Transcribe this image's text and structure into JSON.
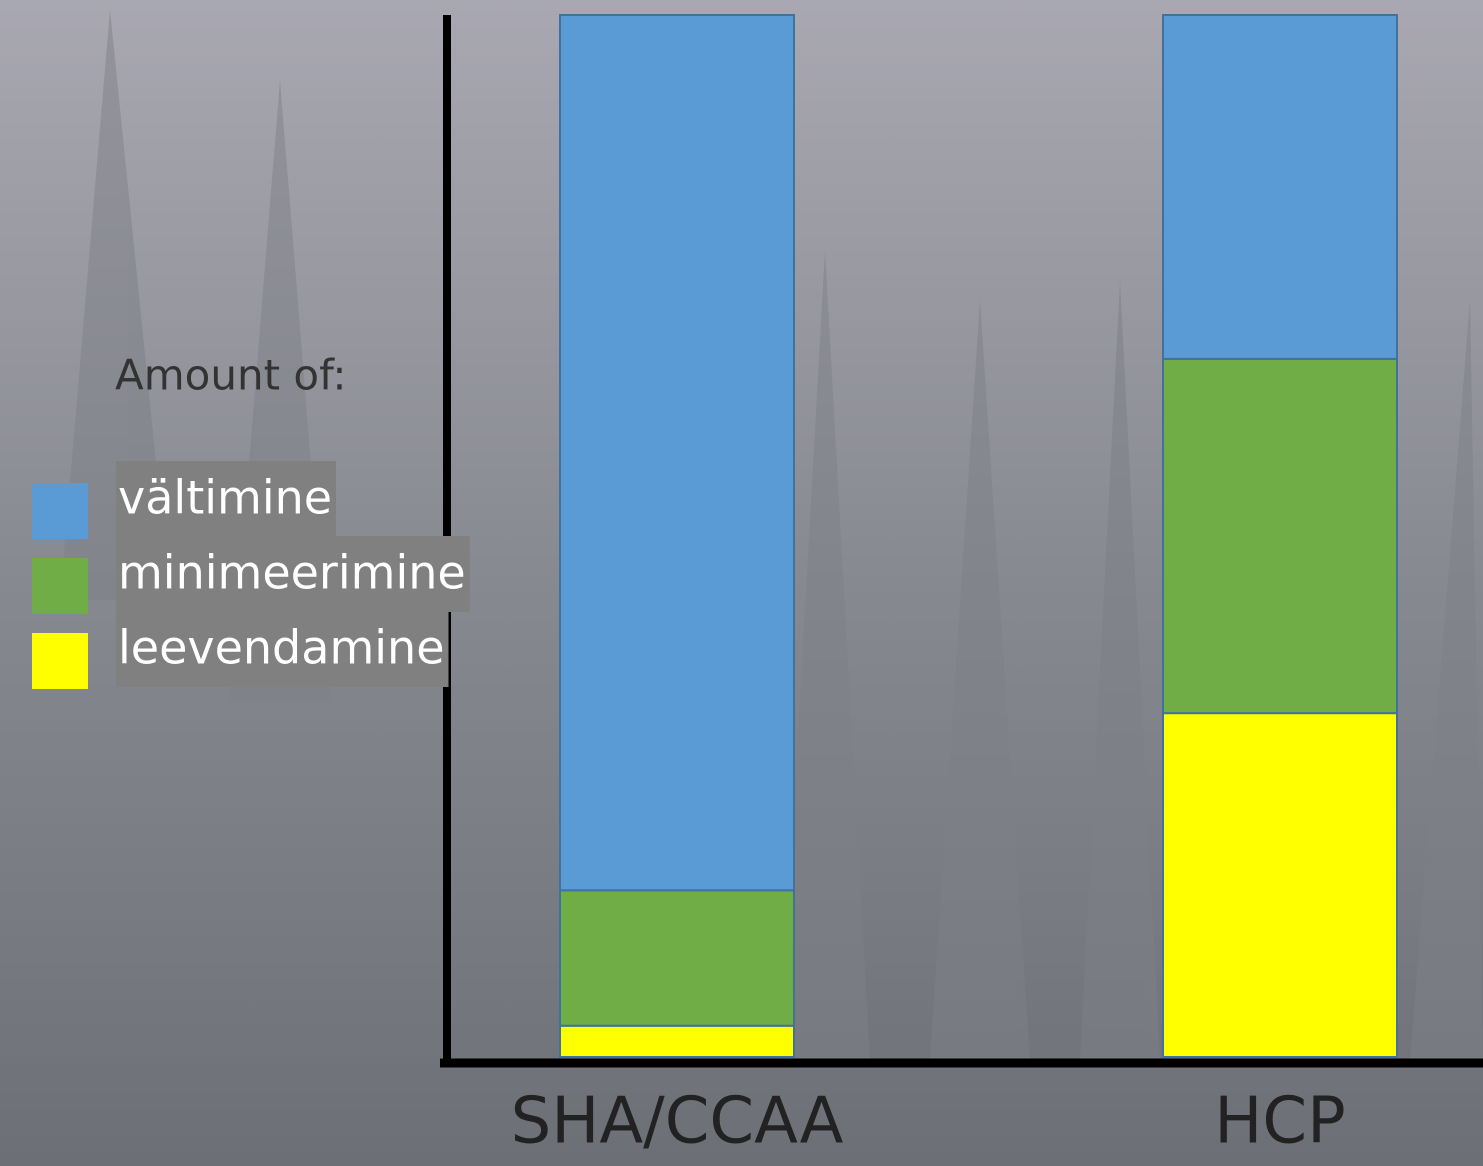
{
  "chart_data": {
    "type": "stacked_bar",
    "legend_title": "Amount of:",
    "categories": [
      "SHA/CCAA",
      "HCP"
    ],
    "series": [
      {
        "name": "leevendamine",
        "color": "#ffff00",
        "values": [
          3,
          33
        ]
      },
      {
        "name": "minimeerimine",
        "color": "#70ad47",
        "values": [
          13,
          34
        ]
      },
      {
        "name": "vältimine",
        "color": "#5b9bd5",
        "values": [
          84,
          33
        ]
      }
    ],
    "ylim": [
      0,
      100
    ]
  }
}
